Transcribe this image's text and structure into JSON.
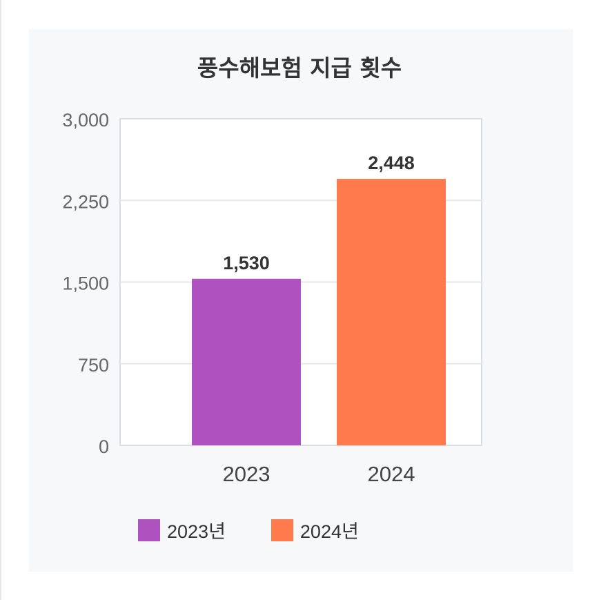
{
  "title": "풍수해보험 지급 횟수",
  "chart_data": {
    "type": "bar",
    "title": "풍수해보험 지급 횟수",
    "categories": [
      "2023",
      "2024"
    ],
    "values": [
      1530,
      2448
    ],
    "data_labels": [
      "1,530",
      "2,448"
    ],
    "colors": [
      "#ae52bf",
      "#ff7a4d"
    ],
    "ylim": [
      0,
      3000
    ],
    "yticks": [
      0,
      750,
      1500,
      2250,
      3000
    ],
    "ytick_labels": [
      "0",
      "750",
      "1,500",
      "2,250",
      "3,000"
    ],
    "grid": true,
    "legend_position": "bottom",
    "legend": [
      {
        "label": "2023년",
        "color": "#ae52bf"
      },
      {
        "label": "2024년",
        "color": "#ff7a4d"
      }
    ]
  }
}
